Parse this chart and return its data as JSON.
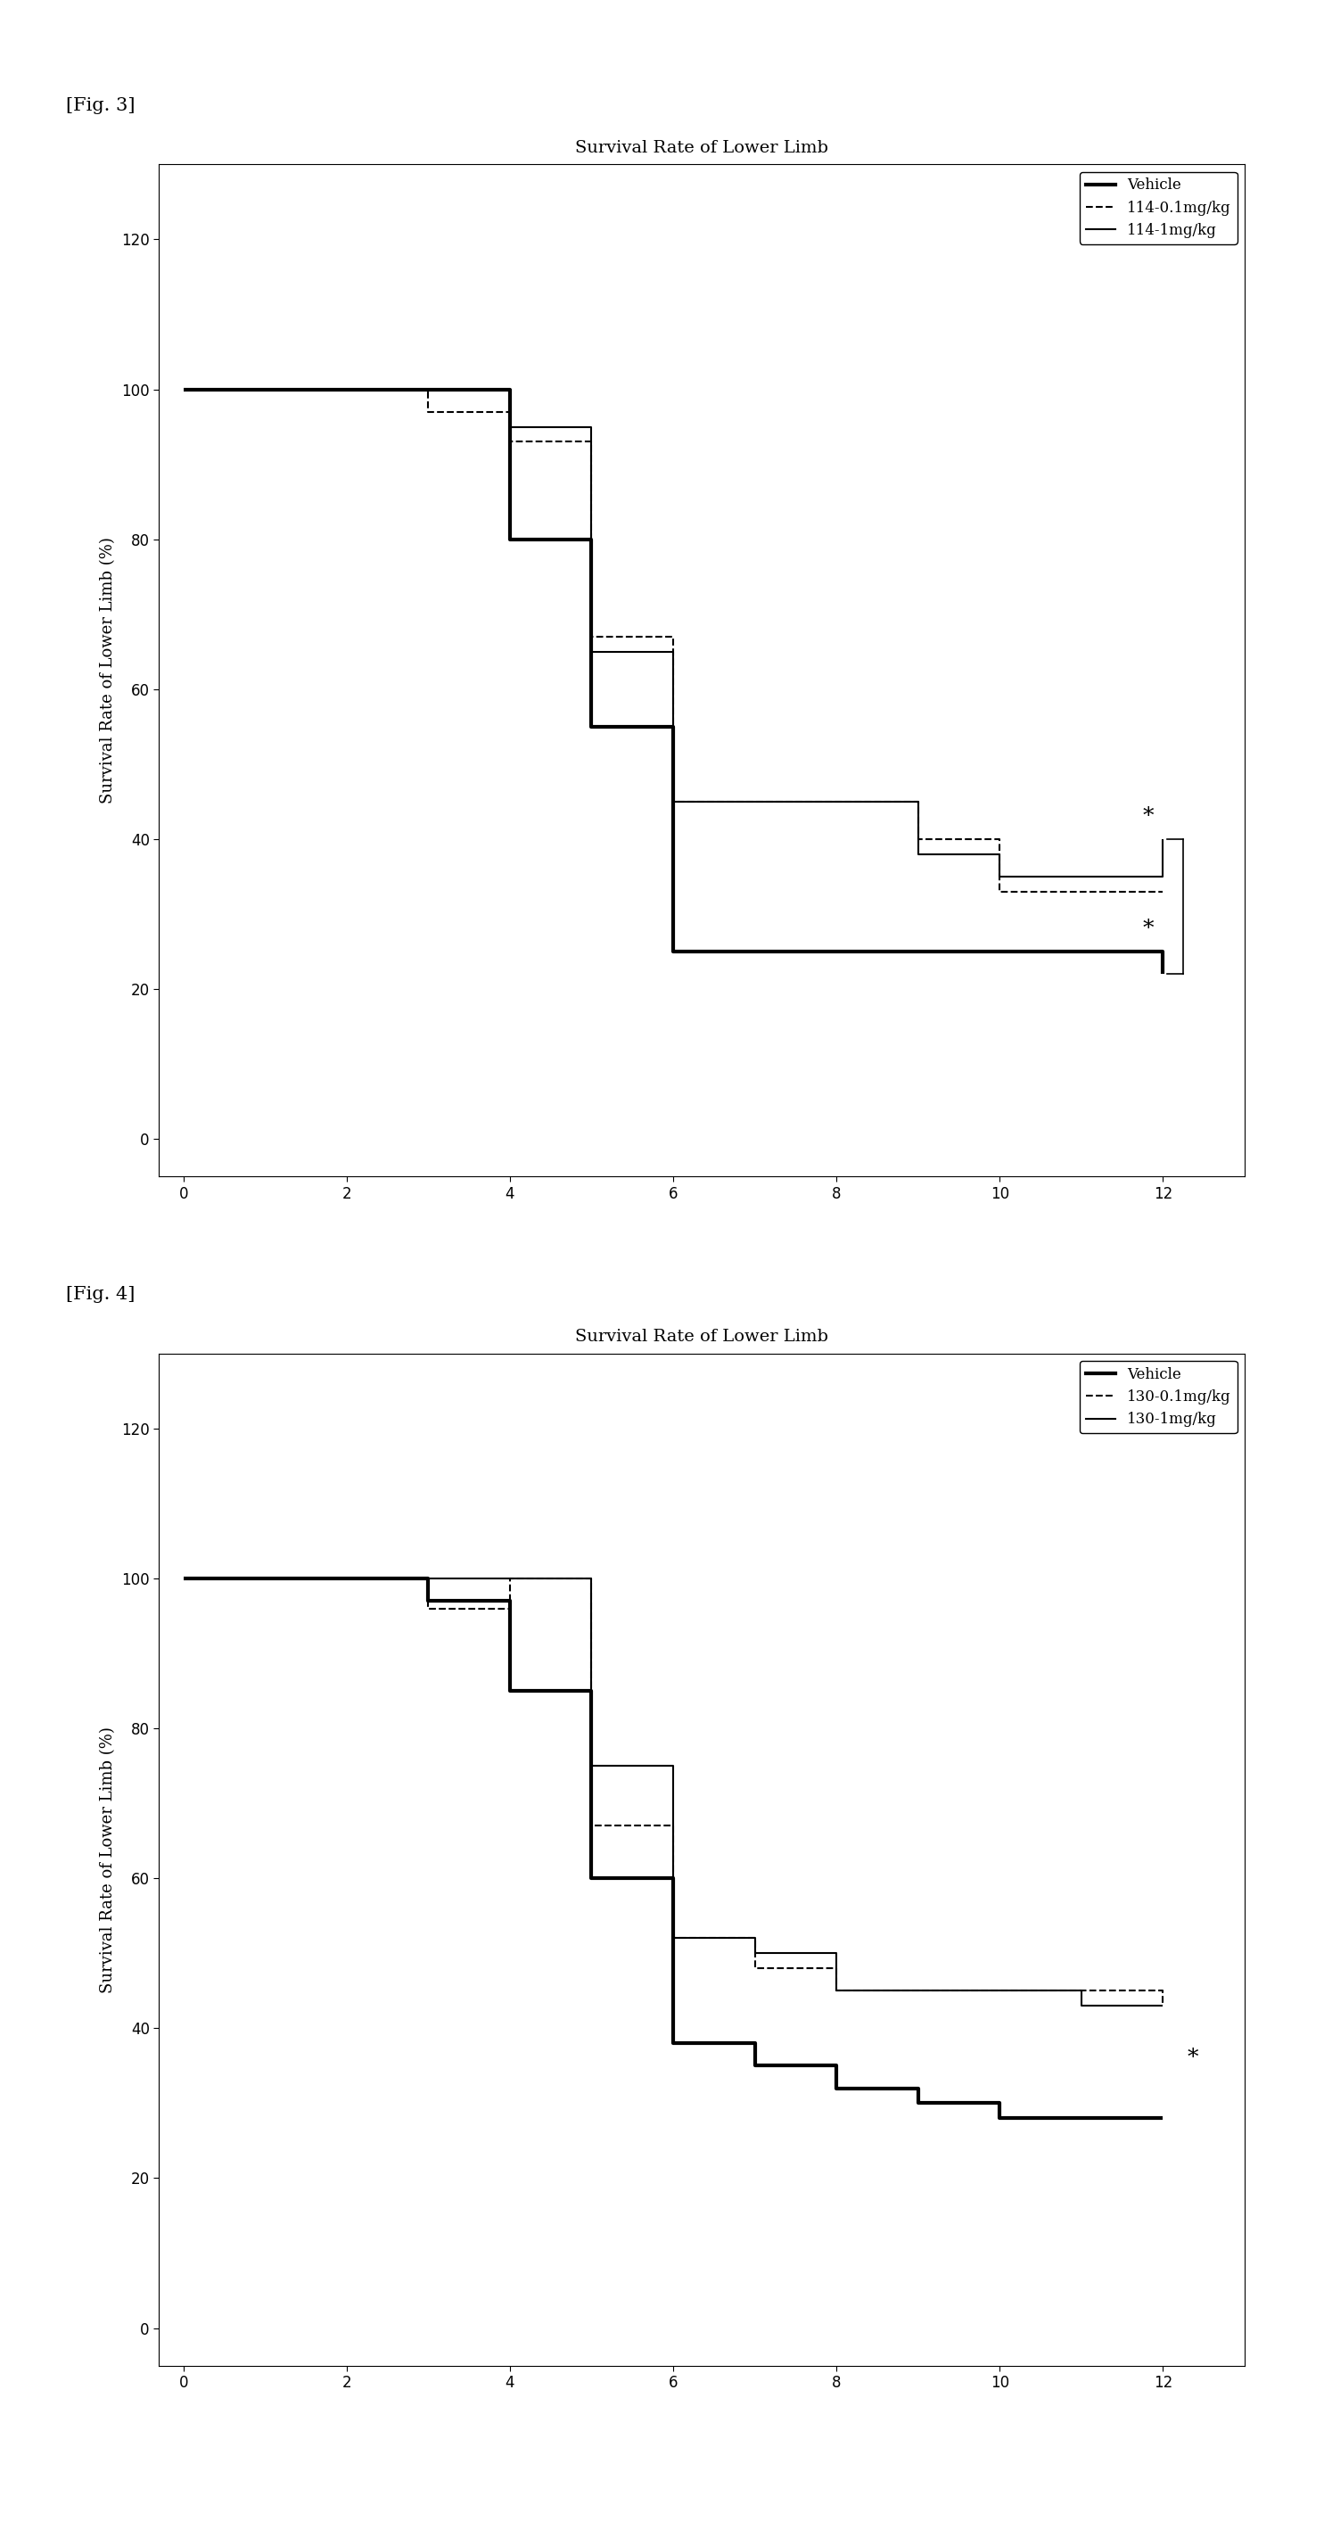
{
  "fig3": {
    "title": "Survival Rate of Lower Limb",
    "ylabel": "Survival Rate of Lower Limb (%)",
    "xlim": [
      -0.3,
      13.0
    ],
    "ylim": [
      -5,
      130
    ],
    "xticks": [
      0,
      2,
      4,
      6,
      8,
      10,
      12
    ],
    "yticks": [
      0,
      20,
      40,
      60,
      80,
      100,
      120
    ],
    "vehicle_x": [
      0,
      3,
      4,
      5,
      6,
      12
    ],
    "vehicle_y": [
      100,
      100,
      80,
      55,
      25,
      22
    ],
    "drug01_x": [
      0,
      3,
      4,
      5,
      6,
      7,
      9,
      10,
      11,
      12
    ],
    "drug01_y": [
      100,
      97,
      93,
      67,
      45,
      45,
      40,
      33,
      33,
      33
    ],
    "drug1_x": [
      0,
      3,
      4,
      5,
      6,
      7,
      9,
      10,
      12
    ],
    "drug1_y": [
      100,
      100,
      95,
      65,
      45,
      45,
      38,
      35,
      40
    ],
    "vehicle_label": "Vehicle",
    "drug01_label": "114-0.1mg/kg",
    "drug1_label": "114-1mg/kg",
    "star1_x": 11.75,
    "star1_y": 43,
    "star2_x": 11.75,
    "star2_y": 28,
    "bracket_y_low": 22,
    "bracket_y_high": 40,
    "bracket_x_inner": 12.05,
    "bracket_x_outer": 12.25
  },
  "fig4": {
    "title": "Survival Rate of Lower Limb",
    "ylabel": "Survival Rate of Lower Limb (%)",
    "xlim": [
      -0.3,
      13.0
    ],
    "ylim": [
      -5,
      130
    ],
    "xticks": [
      0,
      2,
      4,
      6,
      8,
      10,
      12
    ],
    "yticks": [
      0,
      20,
      40,
      60,
      80,
      100,
      120
    ],
    "vehicle_x": [
      0,
      3,
      4,
      5,
      6,
      7,
      8,
      9,
      10,
      11,
      12
    ],
    "vehicle_y": [
      100,
      97,
      85,
      60,
      38,
      35,
      32,
      30,
      28,
      28,
      28
    ],
    "drug01_x": [
      0,
      3,
      4,
      5,
      6,
      7,
      8,
      9,
      10,
      11,
      12
    ],
    "drug01_y": [
      100,
      96,
      100,
      67,
      52,
      48,
      45,
      45,
      45,
      45,
      43
    ],
    "drug1_x": [
      0,
      3,
      4,
      5,
      6,
      7,
      8,
      9,
      10,
      11,
      12
    ],
    "drug1_y": [
      100,
      100,
      100,
      75,
      52,
      50,
      45,
      45,
      45,
      43,
      43
    ],
    "vehicle_label": "Vehicle",
    "drug01_label": "130-0.1mg/kg",
    "drug1_label": "130-1mg/kg",
    "star_x": 12.3,
    "star_y": 36
  },
  "fig3_label": "[Fig. 3]",
  "fig4_label": "[Fig. 4]",
  "background_color": "#ffffff",
  "label_fontsize": 13,
  "title_fontsize": 14,
  "tick_fontsize": 12,
  "legend_fontsize": 12,
  "vehicle_lw": 3.0,
  "drug_lw": 1.5
}
